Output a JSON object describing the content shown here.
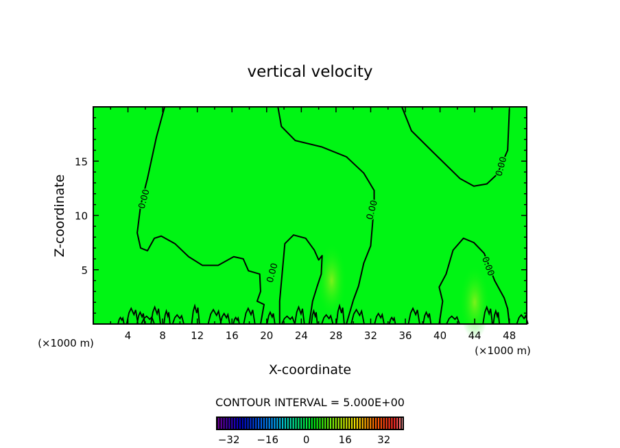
{
  "chart_data": {
    "type": "contour",
    "title": "vertical velocity",
    "xlabel": "X-coordinate",
    "ylabel": "Z-coordinate",
    "x_unit_label": "(×1000 m)",
    "y_unit_label": "(×1000 m)",
    "xlim": [
      0,
      50
    ],
    "ylim": [
      0,
      20
    ],
    "x_ticks": [
      4,
      8,
      12,
      16,
      20,
      24,
      28,
      32,
      36,
      40,
      44,
      48
    ],
    "y_ticks": [
      5,
      10,
      15
    ],
    "field_color": "#00f514",
    "contour_interval_text": "CONTOUR INTERVAL = 5.000E+00",
    "contour_label": "0.00",
    "contours": [
      {
        "level": 0,
        "points": [
          [
            8.23,
            20.0
          ],
          [
            7.28,
            17.2
          ],
          [
            6.25,
            13.4
          ],
          [
            5.46,
            10.9
          ],
          [
            5.07,
            8.4
          ],
          [
            5.46,
            7.0
          ],
          [
            6.25,
            6.75
          ],
          [
            7.05,
            7.9
          ],
          [
            7.84,
            8.1
          ],
          [
            9.42,
            7.4
          ],
          [
            11.0,
            6.2
          ],
          [
            12.6,
            5.4
          ],
          [
            14.4,
            5.4
          ],
          [
            16.2,
            6.2
          ],
          [
            17.3,
            6.0
          ],
          [
            17.9,
            4.9
          ],
          [
            19.2,
            4.6
          ],
          [
            19.3,
            3.0
          ],
          [
            18.9,
            2.1
          ],
          [
            19.7,
            1.8
          ],
          [
            19.3,
            0
          ]
        ]
      },
      {
        "level": 0,
        "points": [
          [
            21.3,
            20.0
          ],
          [
            21.7,
            18.2
          ],
          [
            23.3,
            16.9
          ],
          [
            26.4,
            16.3
          ],
          [
            29.2,
            15.4
          ],
          [
            31.2,
            13.9
          ],
          [
            32.4,
            12.3
          ],
          [
            32.4,
            11.0
          ],
          [
            32.0,
            7.2
          ],
          [
            31.2,
            5.6
          ],
          [
            30.6,
            3.5
          ],
          [
            30.0,
            2.2
          ],
          [
            29.2,
            0
          ]
        ]
      },
      {
        "level": 0,
        "points": [
          [
            21.5,
            0
          ],
          [
            21.5,
            2.1
          ],
          [
            22.1,
            7.4
          ],
          [
            23.1,
            8.2
          ],
          [
            24.5,
            7.9
          ],
          [
            25.5,
            6.8
          ],
          [
            26.0,
            5.9
          ],
          [
            26.4,
            6.3
          ],
          [
            26.3,
            4.6
          ],
          [
            25.8,
            3.4
          ],
          [
            25.3,
            2.1
          ],
          [
            24.9,
            0
          ]
        ]
      },
      {
        "level": 0,
        "points": [
          [
            35.6,
            20.0
          ],
          [
            36.7,
            17.8
          ],
          [
            39.1,
            15.9
          ],
          [
            42.3,
            13.4
          ],
          [
            43.9,
            12.7
          ],
          [
            45.4,
            12.9
          ],
          [
            46.6,
            13.8
          ],
          [
            47.8,
            16.0
          ],
          [
            48.0,
            19.8
          ]
        ]
      },
      {
        "level": 0,
        "points": [
          [
            39.9,
            0
          ],
          [
            40.3,
            2.1
          ],
          [
            39.9,
            3.4
          ],
          [
            40.7,
            4.6
          ],
          [
            41.5,
            6.8
          ],
          [
            42.7,
            7.9
          ],
          [
            43.9,
            7.5
          ],
          [
            45.1,
            6.5
          ],
          [
            46.3,
            4.0
          ],
          [
            47.4,
            2.4
          ],
          [
            47.8,
            1.4
          ],
          [
            48.0,
            0
          ]
        ]
      }
    ],
    "contour_labels_at": [
      [
        5.9,
        11.5
      ],
      [
        20.7,
        4.7
      ],
      [
        32.2,
        10.5
      ],
      [
        47.1,
        14.5
      ],
      [
        45.5,
        5.3
      ]
    ],
    "small_contours_x": [
      3.2,
      4.5,
      5.5,
      6.3,
      7.2,
      8.5,
      9.8,
      11.8,
      14.0,
      15.2,
      16.5,
      18.0,
      20.5,
      22.5,
      23.8,
      25.5,
      27.0,
      28.5,
      30.5,
      33.0,
      34.5,
      37.0,
      38.5,
      41.5,
      45.5,
      46.5,
      49.5
    ],
    "warm_spots": [
      [
        27.5,
        4.0
      ],
      [
        44.0,
        2.0
      ]
    ],
    "colorbar": {
      "range": [
        -37,
        40
      ],
      "tick_values": [
        -32,
        -16,
        0,
        16,
        32
      ],
      "tick_labels": [
        "−32",
        "−16",
        "0",
        "16",
        "32"
      ]
    }
  }
}
